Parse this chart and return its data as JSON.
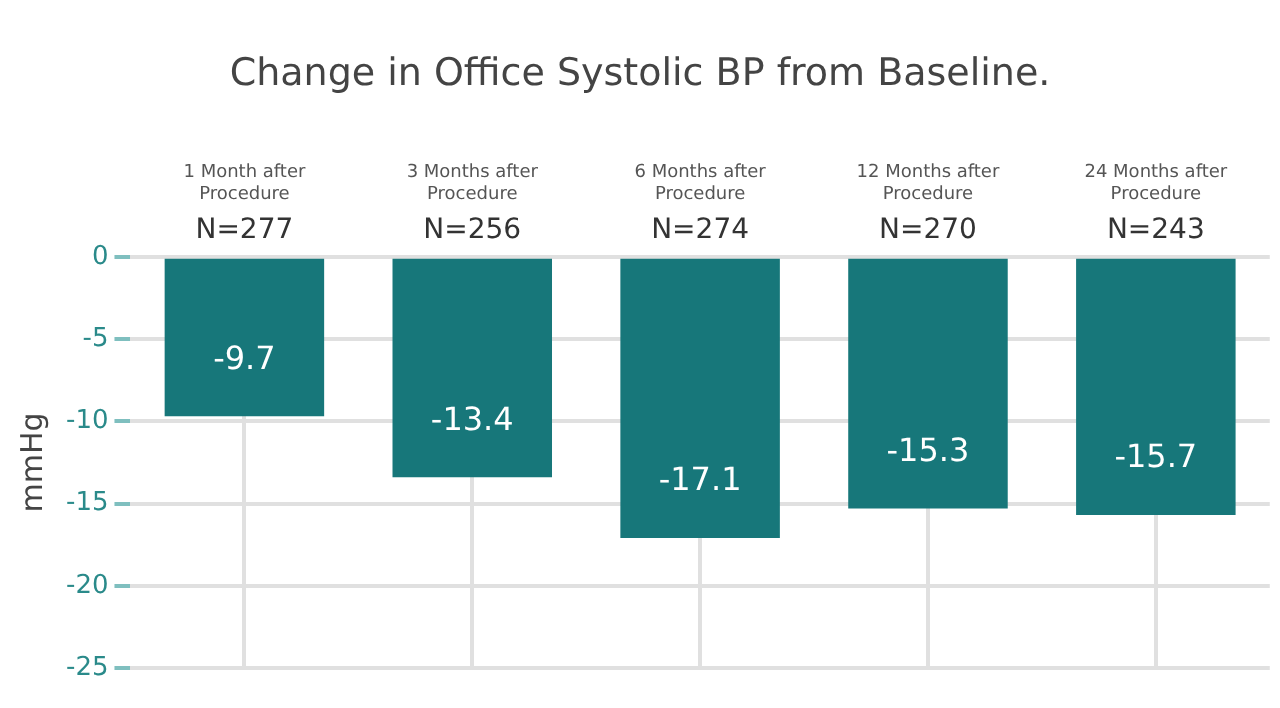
{
  "chart_data": {
    "type": "bar",
    "title": "Change in Office Systolic BP from Baseline.",
    "ylabel": "mmHg",
    "categories": [
      "1 Month after Procedure",
      "3 Months after Procedure",
      "6 Months after Procedure",
      "12 Months after Procedure",
      "24 Months after Procedure"
    ],
    "values": [
      -9.7,
      -13.4,
      -17.1,
      -15.3,
      -15.7
    ],
    "color": "#17777a",
    "ylim": [
      -25,
      0
    ],
    "yticks": [
      0,
      -5,
      -10,
      -15,
      -20,
      -25
    ],
    "grid": true,
    "data_labels": true,
    "annotations": [
      "N=277",
      "N=256",
      "N=274",
      "N=270",
      "N=243"
    ]
  }
}
